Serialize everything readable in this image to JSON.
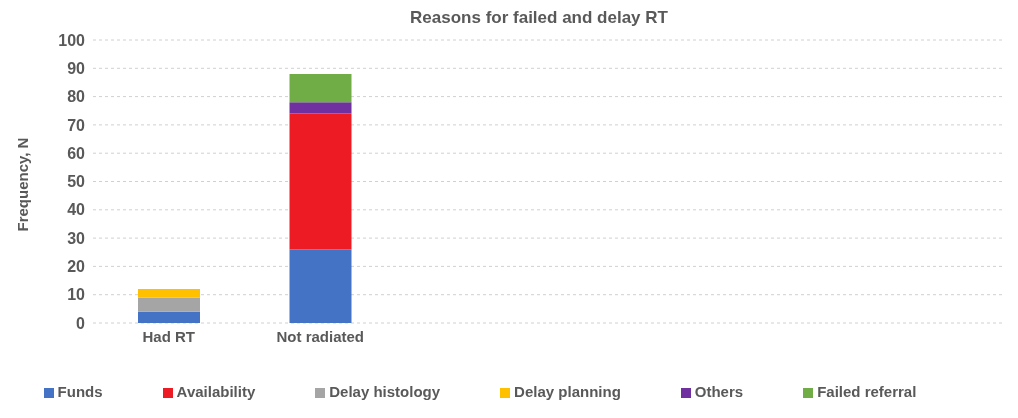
{
  "chart_data": {
    "type": "bar",
    "title": "Reasons for failed and delay RT",
    "ylabel": "Frequency, N",
    "categories": [
      "Had RT",
      "Not radiated",
      null,
      null,
      null,
      null
    ],
    "series": [
      {
        "name": "Funds",
        "color": "#4472c4",
        "values": [
          4,
          26,
          null,
          null,
          null,
          null
        ]
      },
      {
        "name": "Availability",
        "color": "#ed1c24",
        "values": [
          0,
          48,
          null,
          null,
          null,
          null
        ]
      },
      {
        "name": "Delay histology",
        "color": "#a5a5a5",
        "values": [
          5,
          0,
          null,
          null,
          null,
          null
        ]
      },
      {
        "name": "Delay planning",
        "color": "#ffc000",
        "values": [
          3,
          0,
          null,
          null,
          null,
          null
        ]
      },
      {
        "name": "Others",
        "color": "#7030a0",
        "values": [
          0,
          4,
          null,
          null,
          null,
          null
        ]
      },
      {
        "name": "Failed referral",
        "color": "#70ad47",
        "values": [
          0,
          10,
          null,
          null,
          null,
          null
        ]
      }
    ],
    "stacked": true,
    "ylim": [
      0,
      100
    ],
    "yticks": [
      0,
      10,
      20,
      30,
      40,
      50,
      60,
      70,
      80,
      90,
      100
    ],
    "grid": "y",
    "legend": "bottom"
  }
}
